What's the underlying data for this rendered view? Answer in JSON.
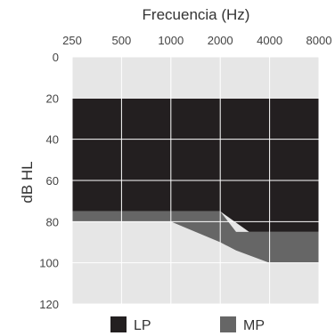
{
  "chart_data": {
    "type": "area",
    "title": "Frecuencia (Hz)",
    "xlabel": "Frecuencia (Hz)",
    "ylabel": "dB HL",
    "x_scale": "log2",
    "y_inverted": true,
    "x_ticks": [
      "250",
      "500",
      "1000",
      "2000",
      "4000",
      "8000"
    ],
    "y_ticks": [
      "0",
      "20",
      "40",
      "60",
      "80",
      "100",
      "120"
    ],
    "xlim": [
      250,
      8000
    ],
    "ylim": [
      0,
      120
    ],
    "grid": true,
    "legend_position": "bottom",
    "series": [
      {
        "name": "LP",
        "color": "#231f20",
        "x": [
          250,
          500,
          1000,
          2000,
          3000,
          4000,
          8000
        ],
        "upper_db": [
          20,
          20,
          20,
          20,
          20,
          20,
          20
        ],
        "lower_db": [
          75,
          75,
          75,
          75,
          85,
          85,
          85
        ]
      },
      {
        "name": "MP",
        "color": "#666666",
        "x": [
          250,
          500,
          1000,
          2000,
          2500,
          4000,
          8000
        ],
        "upper_db": [
          75,
          75,
          75,
          75,
          85,
          85,
          85
        ],
        "lower_db": [
          80,
          80,
          80,
          90,
          94,
          100,
          100
        ]
      }
    ],
    "background_color": "#e6e6e6",
    "grid_color": "#ffffff"
  }
}
